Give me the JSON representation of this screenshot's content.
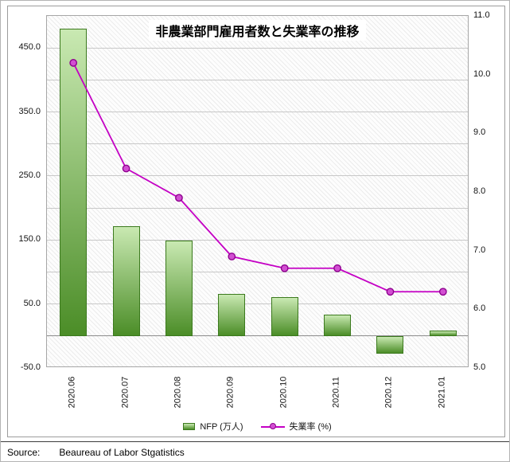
{
  "chart_data": {
    "type": "combo_bar_line",
    "title": "非農業部門雇用者数と失業率の推移",
    "categories": [
      "2020.06",
      "2020.07",
      "2020.08",
      "2020.09",
      "2020.10",
      "2020.11",
      "2020.12",
      "2021.01"
    ],
    "series": [
      {
        "name": "NFP (万人)",
        "chart_type": "bar",
        "axis": "left",
        "values": [
          480,
          172,
          149,
          66,
          61,
          33,
          -28,
          8
        ]
      },
      {
        "name": "失業率 (%)",
        "chart_type": "line",
        "axis": "right",
        "values": [
          10.2,
          8.4,
          7.9,
          6.9,
          6.7,
          6.7,
          6.3,
          6.3
        ]
      }
    ],
    "left_axis": {
      "min": -50,
      "max": 500,
      "gridline_step": 50,
      "ticks": [
        {
          "v": -50,
          "label": "-50.0"
        },
        {
          "v": 50,
          "label": "50.0"
        },
        {
          "v": 150,
          "label": "150.0"
        },
        {
          "v": 250,
          "label": "250.0"
        },
        {
          "v": 350,
          "label": "350.0"
        },
        {
          "v": 450,
          "label": "450.0"
        }
      ]
    },
    "right_axis": {
      "min": 5,
      "max": 11,
      "ticks": [
        {
          "v": 5,
          "label": "5.0"
        },
        {
          "v": 6,
          "label": "6.0"
        },
        {
          "v": 7,
          "label": "7.0"
        },
        {
          "v": 8,
          "label": "8.0"
        },
        {
          "v": 9,
          "label": "9.0"
        },
        {
          "v": 10,
          "label": "10.0"
        },
        {
          "v": 11,
          "label": "11.0"
        }
      ]
    },
    "grid": true,
    "legend_position": "bottom",
    "colors": {
      "bar_gradient_top": "#c9e9b2",
      "bar_gradient_bottom": "#4b8d27",
      "bar_border": "#3c7a1e",
      "line": "#c400c4",
      "marker_fill": "#d24fd2",
      "marker_border": "#8e008e",
      "gridline": "#c8c8c8",
      "zero_line": "#8c8c8c"
    }
  },
  "footer": {
    "source_label": "Source:",
    "source_text": "Beaureau of Labor Stgatistics"
  }
}
